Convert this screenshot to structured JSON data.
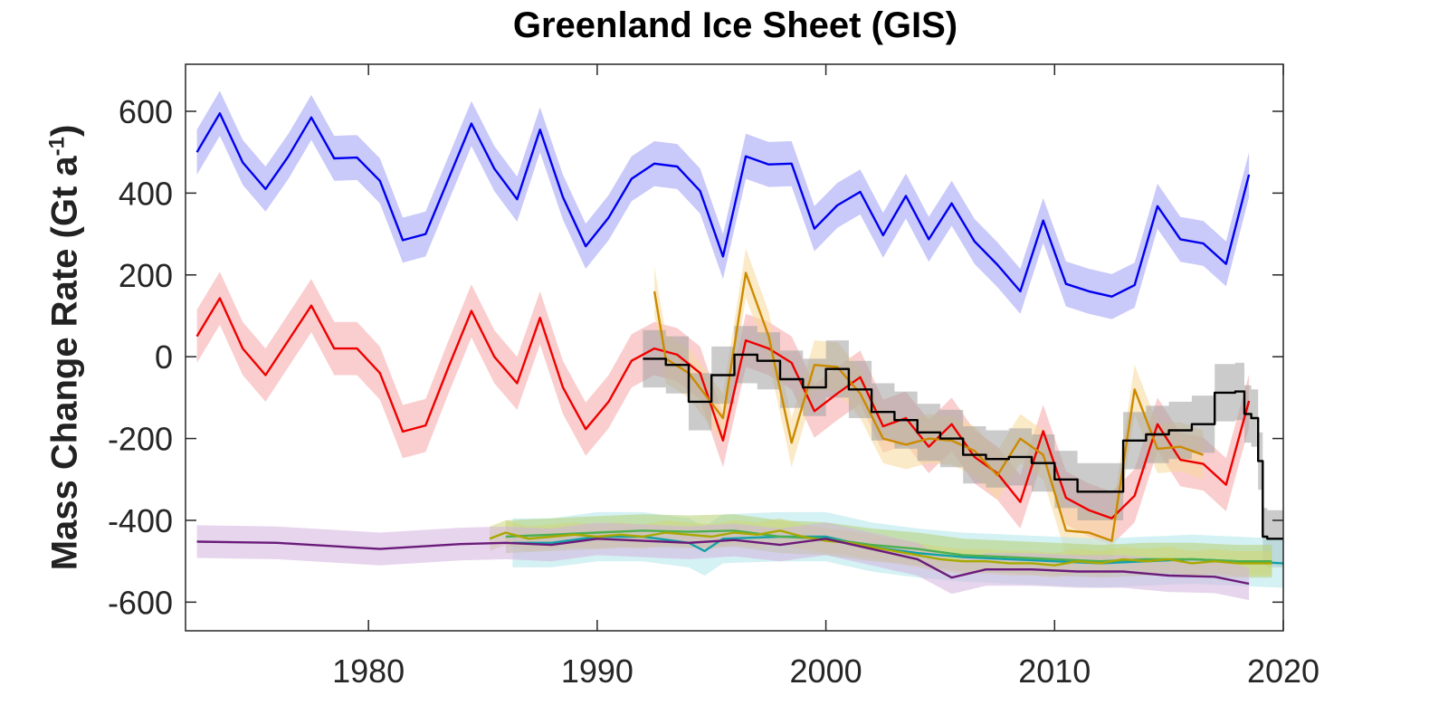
{
  "chart_data": {
    "type": "line",
    "title": "Greenland Ice Sheet (GIS)",
    "ylabel": "Mass Change Rate (Gt a",
    "ylabel_unit_exponent": "-1",
    "ylabel_close": ")",
    "xlabel": "",
    "xlim": [
      1972,
      2020
    ],
    "ylim": [
      -670,
      715
    ],
    "xticks": [
      1980,
      1990,
      2000,
      2010,
      2020
    ],
    "yticks": [
      -600,
      -400,
      -200,
      0,
      200,
      400,
      600
    ],
    "xtick_labels": [
      "1980",
      "1990",
      "2000",
      "2010",
      "2020"
    ],
    "ytick_labels": [
      "-600",
      "-400",
      "-200",
      "0",
      "200",
      "400",
      "600"
    ],
    "grid": false,
    "series": [
      {
        "color": "#0000ee",
        "band_color": "#9c9cf6",
        "uncertainty": 55,
        "style": "line",
        "x": [
          1972.5,
          1973.5,
          1974.5,
          1975.5,
          1976.5,
          1977.5,
          1978.5,
          1979.5,
          1980.5,
          1981.5,
          1982.5,
          1983.5,
          1984.5,
          1985.5,
          1986.5,
          1987.5,
          1988.5,
          1989.5,
          1990.5,
          1991.5,
          1992.5,
          1993.5,
          1994.5,
          1995.5,
          1996.5,
          1997.5,
          1998.5,
          1999.5,
          2000.5,
          2001.5,
          2002.5,
          2003.5,
          2004.5,
          2005.5,
          2006.5,
          2007.5,
          2008.5,
          2009.5,
          2010.5,
          2011.5,
          2012.5,
          2013.5,
          2014.5,
          2015.5,
          2016.5,
          2017.5,
          2018.5
        ],
        "y": [
          500,
          595,
          475,
          410,
          490,
          585,
          485,
          487,
          430,
          285,
          300,
          435,
          570,
          460,
          385,
          555,
          390,
          270,
          340,
          435,
          472,
          465,
          405,
          245,
          490,
          470,
          472,
          313,
          370,
          403,
          297,
          393,
          287,
          375,
          282,
          225,
          160,
          333,
          178,
          160,
          147,
          175,
          368,
          287,
          277,
          227,
          445
        ]
      },
      {
        "color": "#ee0000",
        "band_color": "#f6a6a6",
        "uncertainty": 65,
        "style": "line",
        "x": [
          1972.5,
          1973.5,
          1974.5,
          1975.5,
          1976.5,
          1977.5,
          1978.5,
          1979.5,
          1980.5,
          1981.5,
          1982.5,
          1983.5,
          1984.5,
          1985.5,
          1986.5,
          1987.5,
          1988.5,
          1989.5,
          1990.5,
          1991.5,
          1992.5,
          1993.5,
          1994.5,
          1995.5,
          1996.5,
          1997.5,
          1998.5,
          1999.5,
          2000.5,
          2001.5,
          2002.5,
          2003.5,
          2004.5,
          2005.5,
          2006.5,
          2007.5,
          2008.5,
          2009.5,
          2010.5,
          2011.5,
          2012.5,
          2013.5,
          2014.5,
          2015.5,
          2016.5,
          2017.5,
          2018.5
        ],
        "y": [
          50,
          143,
          20,
          -45,
          40,
          125,
          20,
          20,
          -40,
          -183,
          -168,
          -25,
          112,
          0,
          -65,
          95,
          -75,
          -177,
          -110,
          -10,
          20,
          5,
          -40,
          -205,
          40,
          20,
          -15,
          -133,
          -90,
          -50,
          -170,
          -150,
          -220,
          -165,
          -245,
          -285,
          -355,
          -182,
          -345,
          -375,
          -395,
          -340,
          -165,
          -252,
          -262,
          -313,
          -108
        ]
      },
      {
        "color": "#cc8a00",
        "band_color": "#f7d99a",
        "uncertainty": 60,
        "style": "line",
        "x": [
          1992.5,
          1993.0,
          1994.0,
          1995.5,
          1996.5,
          1997.5,
          1998.5,
          1999.5,
          2000.5,
          2001.5,
          2002.5,
          2003.5,
          2004.5,
          2005.5,
          2006.5,
          2007.5,
          2008.5,
          2009.5,
          2010.5,
          2011.5,
          2012.5,
          2013.5,
          2014.5,
          2015.5,
          2016.5
        ],
        "y": [
          160,
          -5,
          -40,
          -150,
          205,
          50,
          -210,
          -20,
          -25,
          -90,
          -200,
          -215,
          -200,
          -205,
          -230,
          -290,
          -200,
          -240,
          -425,
          -430,
          -450,
          -80,
          -225,
          -220,
          -240
        ]
      },
      {
        "color": "#000000",
        "band_color": "#a0a0a0",
        "uncertainty": 70,
        "style": "step",
        "x": [
          1992.0,
          1993.0,
          1994.0,
          1995.0,
          1996.0,
          1997.0,
          1998.0,
          1999.0,
          2000.0,
          2001.0,
          2002.0,
          2003.0,
          2004.0,
          2005.0,
          2006.0,
          2007.0,
          2008.0,
          2009.0,
          2010.0,
          2011.0,
          2012.0,
          2013.0,
          2014.0,
          2015.0,
          2016.0,
          2017.0,
          2017.9,
          2018.3,
          2018.6,
          2018.9,
          2019.1,
          2019.3,
          2020.0
        ],
        "y": [
          -5,
          -20,
          -110,
          -45,
          5,
          -10,
          -55,
          -75,
          -30,
          -80,
          -135,
          -155,
          -185,
          -200,
          -240,
          -250,
          -245,
          -260,
          -300,
          -330,
          -330,
          -205,
          -190,
          -180,
          -165,
          -88,
          -85,
          -140,
          -150,
          -255,
          -440,
          -445,
          -445
        ]
      },
      {
        "color": "#12a0a8",
        "band_color": "#b0e6ea",
        "uncertainty": 60,
        "style": "line",
        "x": [
          1986.3,
          1988,
          1990,
          1992,
          1994,
          1994.7,
          1995.5,
          1998,
          2000,
          2002,
          2004,
          2006,
          2008,
          2010,
          2012,
          2014,
          2016,
          2018,
          2020
        ],
        "y": [
          -455,
          -455,
          -440,
          -440,
          -455,
          -475,
          -445,
          -440,
          -440,
          -465,
          -480,
          -490,
          -495,
          -500,
          -505,
          -500,
          -495,
          -500,
          -505
        ]
      },
      {
        "color": "#4caf50",
        "band_color": "#b5cf72",
        "uncertainty": 40,
        "style": "line",
        "x": [
          1986,
          1988,
          1990,
          1992,
          1994,
          1996,
          1998,
          2000,
          2002,
          2004,
          2006,
          2008,
          2010,
          2012,
          2014,
          2016,
          2018,
          2019.5
        ],
        "y": [
          -440,
          -435,
          -430,
          -425,
          -428,
          -425,
          -440,
          -445,
          -460,
          -470,
          -485,
          -490,
          -495,
          -500,
          -495,
          -495,
          -500,
          -500
        ]
      },
      {
        "color": "#a8a800",
        "band_color": "#cfd57a",
        "uncertainty": 30,
        "style": "line",
        "x": [
          1985.3,
          1986,
          1987,
          1988,
          1989,
          1990,
          1991,
          1992,
          1993,
          1994,
          1995,
          1996,
          1997,
          1998,
          1999,
          2000,
          2001,
          2002,
          2003,
          2004,
          2005,
          2006,
          2007,
          2008,
          2009,
          2010,
          2011,
          2012,
          2013,
          2014,
          2015,
          2016,
          2017,
          2018,
          2019.5
        ],
        "y": [
          -445,
          -430,
          -445,
          -440,
          -435,
          -440,
          -435,
          -440,
          -430,
          -435,
          -440,
          -430,
          -435,
          -425,
          -440,
          -450,
          -455,
          -465,
          -475,
          -485,
          -495,
          -500,
          -500,
          -505,
          -505,
          -510,
          -500,
          -505,
          -495,
          -500,
          -495,
          -505,
          -500,
          -505,
          -505
        ]
      },
      {
        "color": "#6a1b7a",
        "band_color": "#d4b3df",
        "uncertainty": 40,
        "style": "line",
        "x": [
          1972.5,
          1976,
          1980.5,
          1984,
          1986,
          1988,
          1990,
          1992,
          1994,
          1996,
          1998,
          2000,
          2002,
          2004,
          2005.5,
          2007,
          2009,
          2011,
          2013,
          2015,
          2017,
          2018.5
        ],
        "y": [
          -452,
          -455,
          -470,
          -458,
          -455,
          -460,
          -445,
          -450,
          -455,
          -448,
          -460,
          -445,
          -470,
          -495,
          -540,
          -520,
          -520,
          -525,
          -525,
          -535,
          -538,
          -555
        ]
      }
    ]
  }
}
